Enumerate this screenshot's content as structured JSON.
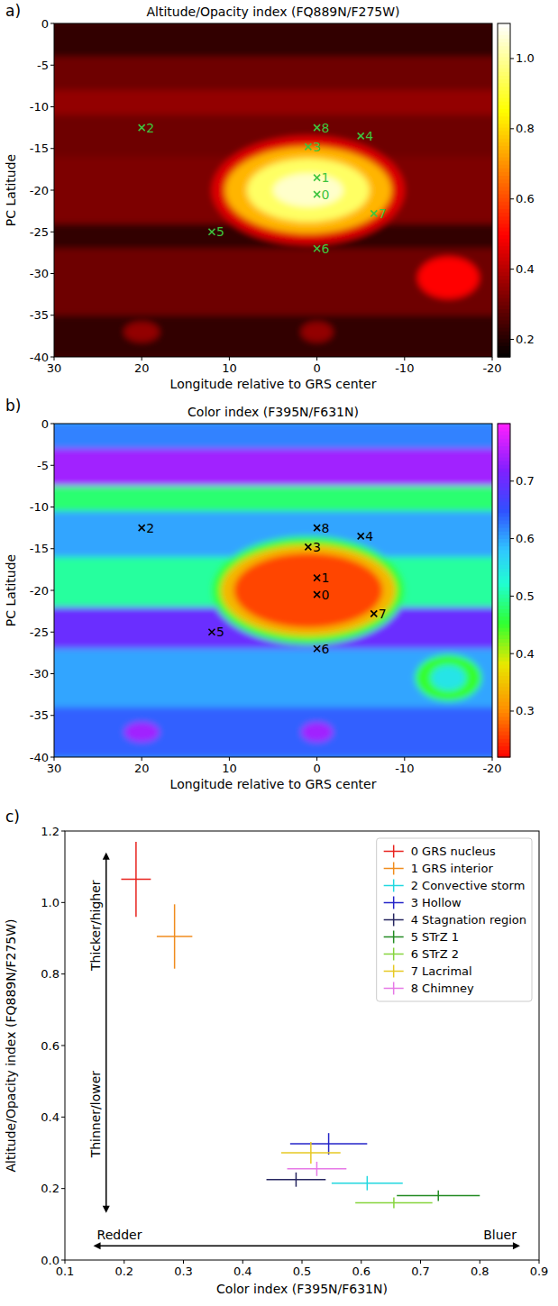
{
  "chart_data": [
    {
      "type": "heatmap",
      "label": "a)",
      "title": "Altitude/Opacity index (FQ889N/F275W)",
      "x_label": "Longitude relative to GRS center",
      "y_label": "PC Latitude",
      "xlim": [
        30,
        -20
      ],
      "ylim": [
        -40,
        0
      ],
      "xticks": [
        30,
        20,
        10,
        0,
        -10,
        -20
      ],
      "yticks": [
        0,
        -5,
        -10,
        -15,
        -20,
        -25,
        -30,
        -35,
        -40
      ],
      "background": 0.25,
      "bands": [
        {
          "lat": [
            0,
            -4
          ],
          "value": 0.22
        },
        {
          "lat": [
            -4,
            -8
          ],
          "value": 0.3
        },
        {
          "lat": [
            -8,
            -11
          ],
          "value": 0.35
        },
        {
          "lat": [
            -11,
            -16
          ],
          "value": 0.3
        },
        {
          "lat": [
            -16,
            -24
          ],
          "value": 0.32
        },
        {
          "lat": [
            -24,
            -27
          ],
          "value": 0.22
        },
        {
          "lat": [
            -27,
            -35
          ],
          "value": 0.3
        },
        {
          "lat": [
            -35,
            -40
          ],
          "value": 0.22
        }
      ],
      "ovals": [
        {
          "lon": 1,
          "lat": -20,
          "rx": 11,
          "ry": 6.5,
          "value": 0.45
        },
        {
          "lon": 1,
          "lat": -20,
          "rx": 9.5,
          "ry": 5.2,
          "value": 0.75
        },
        {
          "lon": 1,
          "lat": -20,
          "rx": 7,
          "ry": 3.8,
          "value": 0.95
        },
        {
          "lon": 1,
          "lat": -20,
          "rx": 4,
          "ry": 2,
          "value": 1.05
        },
        {
          "lon": -15,
          "lat": -30.5,
          "rx": 3.5,
          "ry": 2.5,
          "value": 0.5
        },
        {
          "lon": 20,
          "lat": -37,
          "rx": 2,
          "ry": 1.2,
          "value": 0.35
        },
        {
          "lon": 0,
          "lat": -37,
          "rx": 1.8,
          "ry": 1.2,
          "value": 0.35
        }
      ],
      "points": {
        "labels": [
          "0",
          "1",
          "2",
          "3",
          "4",
          "5",
          "6",
          "7",
          "8"
        ],
        "x": [
          0,
          0,
          20,
          1,
          -5,
          12,
          0,
          -6.5,
          0
        ],
        "y": [
          -20.5,
          -18.5,
          -12.5,
          -14.8,
          -13.5,
          -25,
          -27,
          -22.8,
          -12.5
        ],
        "color": "#3ec43e",
        "marker": "x"
      },
      "colorbar": {
        "range": [
          0.15,
          1.1
        ],
        "ticks": [
          0.2,
          0.4,
          0.6,
          0.8,
          {
            "value": 1,
            "label": "1.0"
          }
        ]
      }
    },
    {
      "type": "heatmap",
      "label": "b)",
      "title": "Color index (F395N/F631N)",
      "x_label": "Longitude relative to GRS center",
      "y_label": "PC Latitude",
      "xlim": [
        30,
        -20
      ],
      "ylim": [
        -40,
        0
      ],
      "xticks": [
        30,
        20,
        10,
        0,
        -10,
        -20
      ],
      "yticks": [
        0,
        -5,
        -10,
        -15,
        -20,
        -25,
        -30,
        -35,
        -40
      ],
      "background": 0.6,
      "bands": [
        {
          "lat": [
            0,
            -3
          ],
          "value": 0.62
        },
        {
          "lat": [
            -3,
            -7.5
          ],
          "value": 0.74
        },
        {
          "lat": [
            -7.5,
            -10.5
          ],
          "value": 0.48
        },
        {
          "lat": [
            -10.5,
            -16
          ],
          "value": 0.6
        },
        {
          "lat": [
            -16,
            -22
          ],
          "value": 0.5
        },
        {
          "lat": [
            -22,
            -27
          ],
          "value": 0.7
        },
        {
          "lat": [
            -27,
            -34
          ],
          "value": 0.6
        },
        {
          "lat": [
            -34,
            -40
          ],
          "value": 0.64
        }
      ],
      "ovals": [
        {
          "lon": 1,
          "lat": -20,
          "rx": 11,
          "ry": 6.5,
          "value": 0.45
        },
        {
          "lon": 1,
          "lat": -20,
          "rx": 10,
          "ry": 5.5,
          "value": 0.34
        },
        {
          "lon": 1,
          "lat": -20,
          "rx": 8.5,
          "ry": 4.5,
          "value": 0.26
        },
        {
          "lon": -15,
          "lat": -30.5,
          "rx": 3.8,
          "ry": 2.8,
          "value": 0.45
        },
        {
          "lon": -15,
          "lat": -30.5,
          "rx": 2,
          "ry": 1.5,
          "value": 0.55
        },
        {
          "lon": 20,
          "lat": -37,
          "rx": 2,
          "ry": 1.2,
          "value": 0.74
        },
        {
          "lon": 0,
          "lat": -37,
          "rx": 1.8,
          "ry": 1.2,
          "value": 0.74
        }
      ],
      "points": {
        "labels": [
          "0",
          "1",
          "2",
          "3",
          "4",
          "5",
          "6",
          "7",
          "8"
        ],
        "x": [
          0,
          0,
          20,
          1,
          -5,
          12,
          0,
          -6.5,
          0
        ],
        "y": [
          -20.5,
          -18.5,
          -12.5,
          -14.8,
          -13.5,
          -25,
          -27,
          -22.8,
          -12.5
        ],
        "color": "#000000",
        "marker": "x"
      },
      "colorbar": {
        "range": [
          0.22,
          0.8
        ],
        "ticks": [
          0.3,
          0.4,
          0.5,
          0.6,
          0.7
        ]
      }
    },
    {
      "type": "scatter",
      "label": "c)",
      "x_label": "Color index (F395N/F631N)",
      "y_label": "Altitude/Opacity index (FQ889N/F275W)",
      "xlim": [
        0.1,
        0.9
      ],
      "ylim": [
        0,
        1.2
      ],
      "xticks": [
        0.1,
        0.2,
        0.3,
        0.4,
        0.5,
        0.6,
        0.7,
        0.8,
        0.9
      ],
      "yticks": [
        {
          "value": 0,
          "label": "0.0"
        },
        0.2,
        0.4,
        0.6,
        0.8,
        {
          "value": 1,
          "label": "1.0"
        },
        1.2
      ],
      "legend": "upper right",
      "annotations": [
        "Thicker/higher",
        "Thinner/lower",
        "Redder",
        "Bluer"
      ],
      "series": [
        {
          "name": "0 GRS nucleus",
          "color": "#e8231e",
          "x": [
            0.22
          ],
          "xerr": [
            0.025
          ],
          "values": [
            1.065
          ],
          "yerr": [
            0.105
          ]
        },
        {
          "name": "1 GRS interior",
          "color": "#f08c1e",
          "x": [
            0.285
          ],
          "xerr": [
            0.03
          ],
          "values": [
            0.905
          ],
          "yerr": [
            0.09
          ]
        },
        {
          "name": "2 Convective storm",
          "color": "#22d8e0",
          "x": [
            0.61
          ],
          "xerr": [
            0.06
          ],
          "values": [
            0.215
          ],
          "yerr": [
            0.02
          ]
        },
        {
          "name": "3 Hollow",
          "color": "#2424c8",
          "x": [
            0.545
          ],
          "xerr": [
            0.065
          ],
          "values": [
            0.325
          ],
          "yerr": [
            0.03
          ]
        },
        {
          "name": "4 Stagnation region",
          "color": "#262660",
          "x": [
            0.49
          ],
          "xerr": [
            0.05
          ],
          "values": [
            0.225
          ],
          "yerr": [
            0.02
          ]
        },
        {
          "name": "5 STrZ 1",
          "color": "#238b23",
          "x": [
            0.73
          ],
          "xerr": [
            0.07
          ],
          "values": [
            0.18
          ],
          "yerr": [
            0.015
          ]
        },
        {
          "name": "6 STrZ 2",
          "color": "#86d43c",
          "x": [
            0.655
          ],
          "xerr": [
            0.065
          ],
          "values": [
            0.16
          ],
          "yerr": [
            0.015
          ]
        },
        {
          "name": "7 Lacrimal",
          "color": "#e6c823",
          "x": [
            0.515
          ],
          "xerr": [
            0.05
          ],
          "values": [
            0.3
          ],
          "yerr": [
            0.03
          ]
        },
        {
          "name": "8 Chimney",
          "color": "#e678e6",
          "x": [
            0.525
          ],
          "xerr": [
            0.05
          ],
          "values": [
            0.255
          ],
          "yerr": [
            0.02
          ]
        }
      ]
    }
  ]
}
